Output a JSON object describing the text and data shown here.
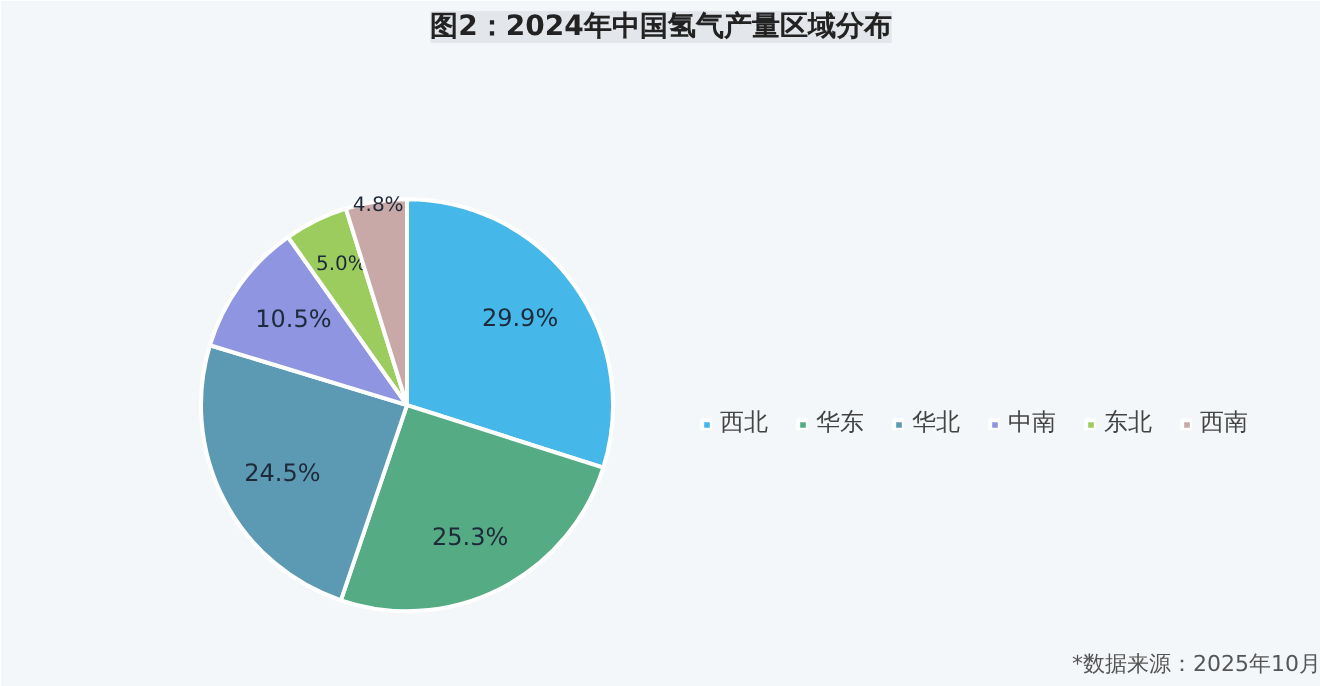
{
  "chart_data": {
    "type": "pie",
    "title": "图2：2024年中国氢气产量区域分布",
    "categories": [
      "西北",
      "华东",
      "华北",
      "中南",
      "东北",
      "西南"
    ],
    "values": [
      29.9,
      25.3,
      24.5,
      10.5,
      5.0,
      4.8
    ],
    "colors": [
      "#45b7e8",
      "#55ab84",
      "#5c9ab4",
      "#8f95e0",
      "#9ccc5e",
      "#c9a8a8"
    ],
    "value_labels": [
      "29.9%",
      "25.3%",
      "24.5%",
      "10.5%",
      "5.0%",
      "4.8%"
    ],
    "legend": "right",
    "annotations": [
      "*数据来源：2025年10月"
    ]
  }
}
